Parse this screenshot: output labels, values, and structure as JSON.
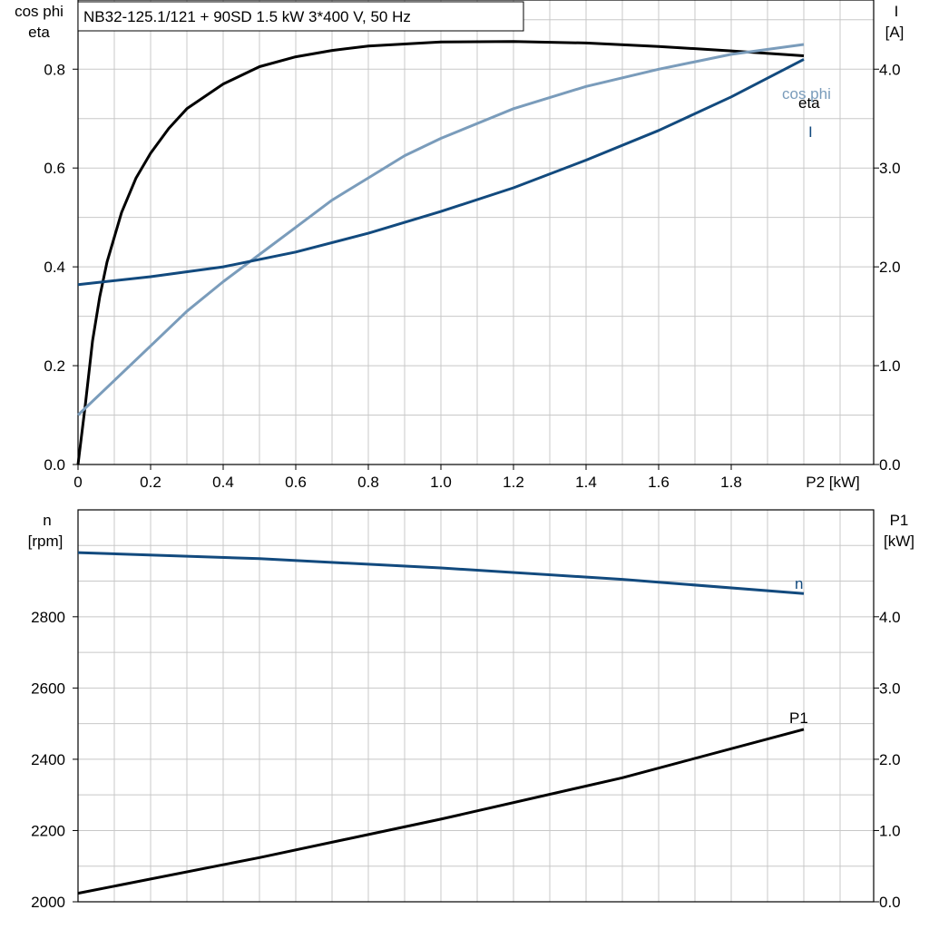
{
  "title": "NB32-125.1/121 + 90SD   1.5 kW   3*400 V, 50 Hz",
  "colors": {
    "eta": "#000000",
    "cos_phi": "#7a9cbb",
    "I": "#124a7e",
    "n": "#124a7e",
    "P1": "#000000",
    "grid": "#c8c8c8",
    "axis": "#000000"
  },
  "chart_data": [
    {
      "type": "line",
      "xlabel": "P2 [kW]",
      "ylabel_left": [
        "cos phi",
        "eta"
      ],
      "ylabel_right": [
        "I",
        "[A]"
      ],
      "xlim": [
        0,
        2.2
      ],
      "ylim_left": [
        0,
        0.94
      ],
      "ylim_right": [
        0,
        4.7
      ],
      "x_ticks": [
        "0",
        "0.2",
        "0.4",
        "0.6",
        "0.8",
        "1.0",
        "1.2",
        "1.4",
        "1.6",
        "1.8"
      ],
      "y_ticks_left": [
        "0.0",
        "0.2",
        "0.4",
        "0.6",
        "0.8"
      ],
      "y_ticks_right": [
        "0.0",
        "1.0",
        "2.0",
        "3.0",
        "4.0"
      ],
      "grid": true,
      "series": [
        {
          "name": "eta",
          "axis": "left",
          "x": [
            0,
            0.02,
            0.04,
            0.06,
            0.08,
            0.12,
            0.16,
            0.2,
            0.25,
            0.3,
            0.4,
            0.5,
            0.6,
            0.7,
            0.8,
            1.0,
            1.2,
            1.4,
            1.6,
            1.8,
            2.0
          ],
          "y": [
            0.0,
            0.12,
            0.25,
            0.34,
            0.41,
            0.51,
            0.58,
            0.63,
            0.68,
            0.72,
            0.77,
            0.805,
            0.825,
            0.838,
            0.847,
            0.855,
            0.856,
            0.853,
            0.846,
            0.837,
            0.827
          ]
        },
        {
          "name": "cos phi",
          "axis": "left",
          "x": [
            0,
            0.1,
            0.2,
            0.3,
            0.4,
            0.5,
            0.6,
            0.7,
            0.8,
            0.9,
            1.0,
            1.2,
            1.4,
            1.6,
            1.8,
            2.0
          ],
          "y": [
            0.1,
            0.17,
            0.24,
            0.31,
            0.37,
            0.425,
            0.48,
            0.535,
            0.58,
            0.625,
            0.66,
            0.72,
            0.765,
            0.8,
            0.83,
            0.85
          ]
        },
        {
          "name": "I",
          "axis": "right",
          "x": [
            0,
            0.2,
            0.4,
            0.6,
            0.8,
            1.0,
            1.2,
            1.4,
            1.6,
            1.8,
            2.0
          ],
          "y": [
            1.82,
            1.9,
            2.0,
            2.15,
            2.34,
            2.56,
            2.8,
            3.08,
            3.38,
            3.72,
            4.1
          ]
        }
      ]
    },
    {
      "type": "line",
      "xlabel": "",
      "ylabel_left": [
        "n",
        "[rpm]"
      ],
      "ylabel_right": [
        "P1",
        "[kW]"
      ],
      "xlim": [
        0,
        2.2
      ],
      "ylim_left": [
        2000,
        3100
      ],
      "ylim_right": [
        0,
        5.5
      ],
      "y_ticks_left": [
        "2000",
        "2200",
        "2400",
        "2600",
        "2800"
      ],
      "y_ticks_right": [
        "0.0",
        "1.0",
        "2.0",
        "3.0",
        "4.0"
      ],
      "grid": true,
      "series": [
        {
          "name": "n",
          "axis": "left",
          "x": [
            0,
            0.5,
            1.0,
            1.5,
            2.0
          ],
          "y": [
            2980,
            2963,
            2937,
            2905,
            2865
          ]
        },
        {
          "name": "P1",
          "axis": "right",
          "x": [
            0,
            0.5,
            1.0,
            1.5,
            2.0
          ],
          "y": [
            0.12,
            0.62,
            1.16,
            1.74,
            2.42
          ]
        }
      ]
    }
  ]
}
